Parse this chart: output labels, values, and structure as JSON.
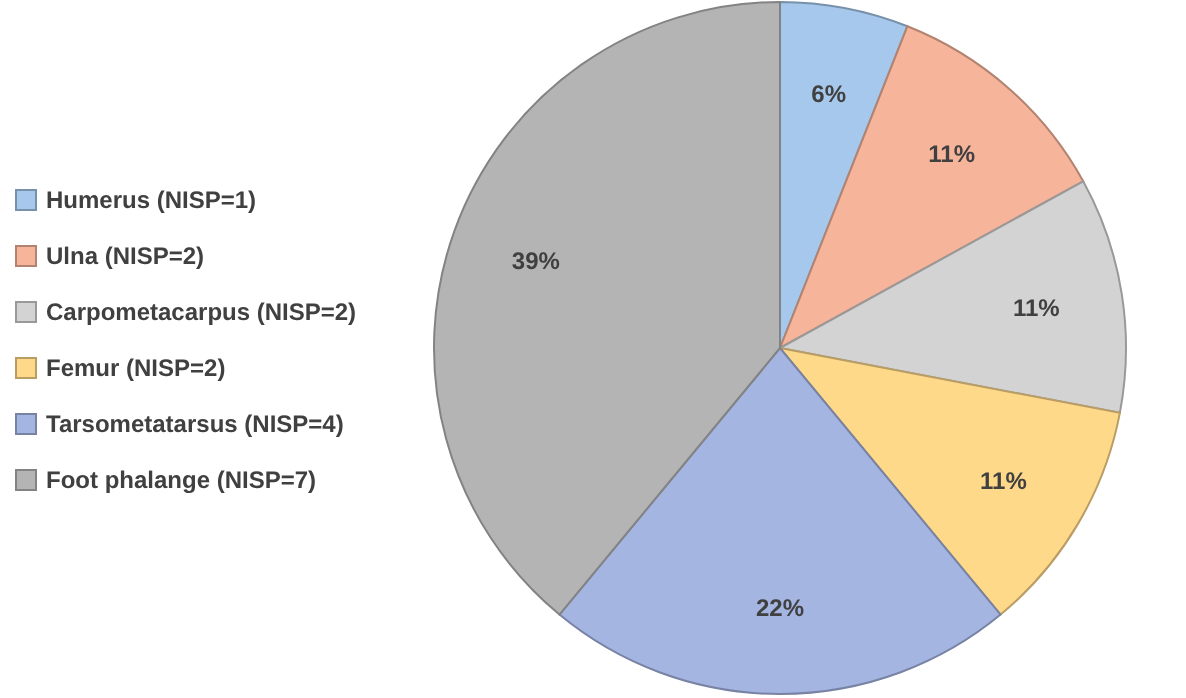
{
  "chart_data": {
    "type": "pie",
    "categories": [
      "Humerus (NISP=1)",
      "Ulna (NISP=2)",
      "Carpometacarpus (NISP=2)",
      "Femur (NISP=2)",
      "Tarsometatarsus (NISP=4)",
      "Foot phalange (NISP=7)"
    ],
    "values": [
      6,
      11,
      11,
      11,
      22,
      39
    ],
    "colors": [
      "#a6c8ec",
      "#f6b49a",
      "#d3d3d3",
      "#ffd98a",
      "#a5b5e2",
      "#b4b4b4"
    ],
    "value_labels": [
      "6%",
      "11%",
      "11%",
      "11%",
      "22%",
      "39%"
    ],
    "legend": "left"
  }
}
